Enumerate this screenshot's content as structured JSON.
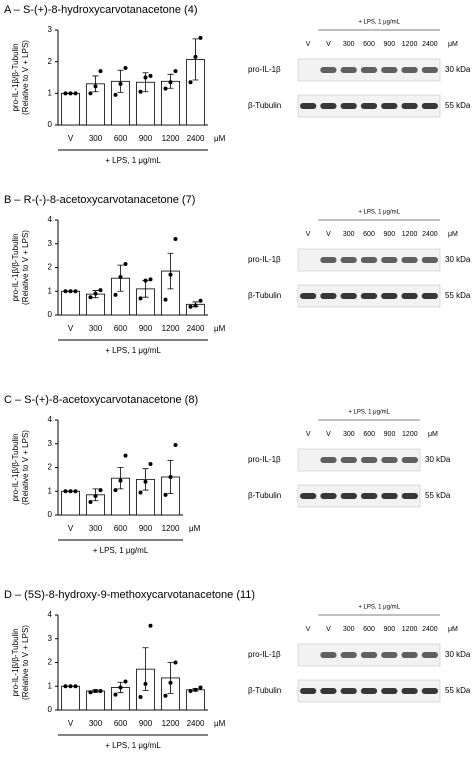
{
  "chart_data": [
    {
      "type": "bar",
      "title": "A – S-(+)-8-hydroxycarvotanacetone (4)",
      "ylabel": [
        "pro-IL-1β/β-Tubulin",
        "(Relative to V + LPS)"
      ],
      "categories": [
        "V",
        "300",
        "600",
        "900",
        "1200",
        "2400"
      ],
      "values": [
        1,
        1.3,
        1.38,
        1.35,
        1.38,
        2.07
      ],
      "errors": [
        0,
        0.25,
        0.35,
        0.3,
        0.22,
        0.65
      ],
      "points": [
        [
          1,
          1,
          1
        ],
        [
          1,
          1.22,
          1.7
        ],
        [
          0.95,
          1.3,
          1.8
        ],
        [
          1.05,
          1.5,
          1.55
        ],
        [
          1.15,
          1.35,
          1.7
        ],
        [
          1.35,
          2.15,
          2.75
        ]
      ],
      "ylim": [
        0,
        3
      ],
      "yticks": [
        0,
        1,
        2,
        3
      ],
      "xlabel": "+ LPS, 1 μg/mL",
      "unit": "μM",
      "blot": {
        "treatment": "+ LPS, 1 μg/mL",
        "unit": "μM",
        "lanes": [
          "V",
          "V",
          "300",
          "600",
          "900",
          "1200",
          "2400"
        ],
        "rows": [
          {
            "name": "pro-IL-1β",
            "size": "30 kDa"
          },
          {
            "name": "β-Tubulin",
            "size": "55 kDa"
          }
        ]
      }
    },
    {
      "type": "bar",
      "title": "B – R-(-)-8-acetoxycarvotanacetone (7)",
      "ylabel": [
        "pro-IL-1β/β-Tubulin",
        "(Relative to V + LPS)"
      ],
      "categories": [
        "V",
        "300",
        "600",
        "900",
        "1200",
        "2400"
      ],
      "values": [
        1,
        0.88,
        1.55,
        1.1,
        1.85,
        0.45
      ],
      "errors": [
        0,
        0.15,
        0.55,
        0.35,
        0.75,
        0.1
      ],
      "points": [
        [
          1,
          1,
          1
        ],
        [
          0.75,
          0.9,
          1.05
        ],
        [
          0.85,
          1.6,
          2.15
        ],
        [
          0.7,
          1.45,
          1.5
        ],
        [
          0.65,
          1.7,
          3.2
        ],
        [
          0.35,
          0.4,
          0.6
        ]
      ],
      "ylim": [
        0,
        4
      ],
      "yticks": [
        0,
        1,
        2,
        3,
        4
      ],
      "xlabel": "+ LPS, 1 μg/mL",
      "unit": "μM",
      "blot": {
        "treatment": "+ LPS, 1 μg/mL",
        "unit": "μM",
        "lanes": [
          "V",
          "V",
          "300",
          "600",
          "900",
          "1200",
          "2400"
        ],
        "rows": [
          {
            "name": "pro-IL-1β",
            "size": "30 kDa"
          },
          {
            "name": "β-Tubulin",
            "size": "55 kDa"
          }
        ]
      }
    },
    {
      "type": "bar",
      "title": "C – S-(+)-8-acetoxycarvotanacetone (8)",
      "ylabel": [
        "pro-IL-1β/β-Tubulin",
        "(Relative to V + LPS)"
      ],
      "categories": [
        "V",
        "300",
        "600",
        "900",
        "1200"
      ],
      "values": [
        1,
        0.85,
        1.55,
        1.5,
        1.6
      ],
      "errors": [
        0,
        0.25,
        0.45,
        0.45,
        0.7
      ],
      "points": [
        [
          1,
          1,
          1
        ],
        [
          0.55,
          0.8,
          1.05
        ],
        [
          1.05,
          1.45,
          2.5
        ],
        [
          0.95,
          1.4,
          2.15
        ],
        [
          0.85,
          1.6,
          2.95
        ]
      ],
      "ylim": [
        0,
        4
      ],
      "yticks": [
        0,
        1,
        2,
        3,
        4
      ],
      "xlabel": "+ LPS, 1 μg/mL",
      "unit": "μM",
      "blot": {
        "treatment": "+ LPS, 1 μg/mL",
        "unit": "μM",
        "lanes": [
          "V",
          "V",
          "300",
          "600",
          "900",
          "1200"
        ],
        "rows": [
          {
            "name": "pro-IL-1β",
            "size": "30 kDa"
          },
          {
            "name": "β-Tubulin",
            "size": "55 kDa"
          }
        ]
      }
    },
    {
      "type": "bar",
      "title": "D – (5S)-8-hydroxy-9-methoxycarvotanacetone (11)",
      "ylabel": [
        "pro-IL-1β/β-Tubulin",
        "(Relative to V + LPS)"
      ],
      "categories": [
        "V",
        "300",
        "600",
        "900",
        "1200",
        "2400"
      ],
      "values": [
        1,
        0.8,
        0.95,
        1.72,
        1.35,
        0.85
      ],
      "errors": [
        0,
        0.05,
        0.22,
        0.9,
        0.65,
        0.05
      ],
      "points": [
        [
          1,
          1,
          1
        ],
        [
          0.75,
          0.8,
          0.8
        ],
        [
          0.65,
          0.95,
          1.2
        ],
        [
          0.55,
          1.1,
          3.55
        ],
        [
          0.6,
          1.15,
          2
        ],
        [
          0.8,
          0.85,
          0.95
        ]
      ],
      "ylim": [
        0,
        4
      ],
      "yticks": [
        0,
        1,
        2,
        3,
        4
      ],
      "xlabel": "+ LPS, 1 μg/mL",
      "unit": "μM",
      "blot": {
        "treatment": "+ LPS, 1 μg/mL",
        "unit": "μM",
        "lanes": [
          "V",
          "V",
          "300",
          "600",
          "900",
          "1200",
          "2400"
        ],
        "rows": [
          {
            "name": "pro-IL-1β",
            "size": "30 kDa"
          },
          {
            "name": "β-Tubulin",
            "size": "55 kDa"
          }
        ]
      }
    }
  ]
}
